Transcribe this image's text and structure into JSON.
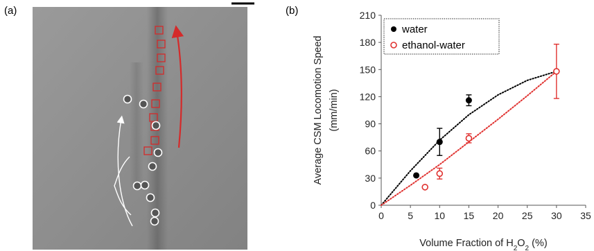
{
  "panels": {
    "a_label": "(a)",
    "b_label": "(b)"
  },
  "colors": {
    "water": "#000000",
    "ethanol_water": "#e0312f",
    "arrow_red": "#d42a2a",
    "arrow_white": "#ffffff",
    "photo_background": "#8f8f8f"
  },
  "photo": {
    "description_icon": "micrograph-image",
    "has_scale_bar": true
  },
  "chart_data": {
    "type": "scatter",
    "xlabel_main": "Volume Fraction of H",
    "xlabel_sub": "2",
    "xlabel_mid": "O",
    "xlabel_sub2": "2",
    "xlabel_end": " (%)",
    "ylabel_line1": "Average CSM Locomotion Speed",
    "ylabel_line2": "(mm/min)",
    "xlim": [
      0,
      35
    ],
    "ylim": [
      0,
      210
    ],
    "xticks": [
      "0",
      "5",
      "10",
      "15",
      "20",
      "25",
      "30",
      "35"
    ],
    "yticks": [
      "0",
      "30",
      "60",
      "90",
      "120",
      "150",
      "180",
      "210"
    ],
    "legend_position": "top-left",
    "series": [
      {
        "name": "water",
        "marker": "filled-circle",
        "points": [
          {
            "x": 6,
            "y": 33,
            "err": 0
          },
          {
            "x": 10,
            "y": 70,
            "err": 15
          },
          {
            "x": 15,
            "y": 116,
            "err": 6
          },
          {
            "x": 30,
            "y": 148,
            "err": 0
          }
        ],
        "fit": [
          [
            0,
            0
          ],
          [
            5,
            38
          ],
          [
            10,
            72
          ],
          [
            15,
            100
          ],
          [
            20,
            122
          ],
          [
            25,
            138
          ],
          [
            30,
            148
          ]
        ]
      },
      {
        "name": "ethanol-water",
        "marker": "open-circle",
        "points": [
          {
            "x": 7.5,
            "y": 20,
            "err": 0
          },
          {
            "x": 10,
            "y": 35,
            "err": 6
          },
          {
            "x": 15,
            "y": 74,
            "err": 5
          },
          {
            "x": 30,
            "y": 148,
            "err": 30
          }
        ],
        "fit": [
          [
            0,
            0
          ],
          [
            5,
            22
          ],
          [
            10,
            45
          ],
          [
            15,
            70
          ],
          [
            20,
            95
          ],
          [
            25,
            121
          ],
          [
            30,
            148
          ]
        ]
      }
    ]
  }
}
